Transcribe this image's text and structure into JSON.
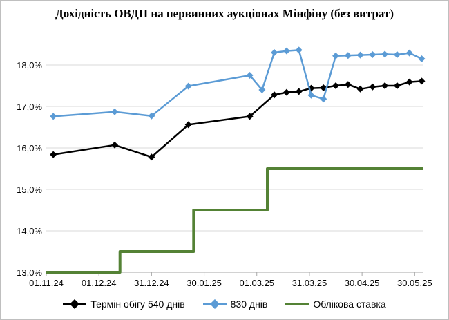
{
  "chart_data": {
    "type": "line",
    "title": "Дохідність ОВДП на первинних аукціонах Мінфіну (без витрат)",
    "xlabel": "",
    "ylabel": "",
    "xlim": [
      "2024-11-01",
      "2025-06-04"
    ],
    "ylim": [
      13.0,
      18.6
    ],
    "y_ticks": [
      13.0,
      14.0,
      15.0,
      16.0,
      17.0,
      18.0
    ],
    "y_tick_labels": [
      "13,0%",
      "14,0%",
      "15,0%",
      "16,0%",
      "17,0%",
      "18,0%"
    ],
    "x_ticks": [
      "2024-11-01",
      "2024-12-01",
      "2024-12-31",
      "2025-01-30",
      "2025-03-01",
      "2025-03-31",
      "2025-04-30",
      "2025-05-30"
    ],
    "x_tick_labels": [
      "01.11.24",
      "01.12.24",
      "31.12.24",
      "30.01.25",
      "01.03.25",
      "31.03.25",
      "30.04.25",
      "30.05.25"
    ],
    "grid": true,
    "legend_position": "bottom",
    "series": [
      {
        "name": "Термін обігу 540 днів",
        "color": "#000000",
        "marker": "diamond",
        "points": [
          [
            "2024-11-05",
            15.84
          ],
          [
            "2024-12-10",
            16.07
          ],
          [
            "2024-12-31",
            15.78
          ],
          [
            "2025-01-21",
            16.56
          ],
          [
            "2025-02-25",
            16.76
          ],
          [
            "2025-03-11",
            17.28
          ],
          [
            "2025-03-18",
            17.34
          ],
          [
            "2025-03-25",
            17.36
          ],
          [
            "2025-04-01",
            17.44
          ],
          [
            "2025-04-08",
            17.45
          ],
          [
            "2025-04-15",
            17.5
          ],
          [
            "2025-04-22",
            17.53
          ],
          [
            "2025-04-29",
            17.42
          ],
          [
            "2025-05-06",
            17.47
          ],
          [
            "2025-05-13",
            17.5
          ],
          [
            "2025-05-20",
            17.5
          ],
          [
            "2025-05-27",
            17.59
          ],
          [
            "2025-06-03",
            17.61
          ]
        ]
      },
      {
        "name": "830 днів",
        "color": "#5b9bd5",
        "marker": "diamond",
        "points": [
          [
            "2024-11-05",
            16.76
          ],
          [
            "2024-12-10",
            16.87
          ],
          [
            "2024-12-31",
            16.77
          ],
          [
            "2025-01-21",
            17.49
          ],
          [
            "2025-02-25",
            17.75
          ],
          [
            "2025-03-04",
            17.4
          ],
          [
            "2025-03-11",
            18.3
          ],
          [
            "2025-03-18",
            18.34
          ],
          [
            "2025-03-25",
            18.36
          ],
          [
            "2025-04-01",
            17.27
          ],
          [
            "2025-04-08",
            17.18
          ],
          [
            "2025-04-15",
            18.22
          ],
          [
            "2025-04-22",
            18.23
          ],
          [
            "2025-04-29",
            18.24
          ],
          [
            "2025-05-06",
            18.25
          ],
          [
            "2025-05-13",
            18.26
          ],
          [
            "2025-05-20",
            18.25
          ],
          [
            "2025-05-27",
            18.29
          ],
          [
            "2025-06-03",
            18.15
          ]
        ]
      },
      {
        "name": "Облікова ставка",
        "color": "#548235",
        "marker": "none",
        "step": true,
        "points": [
          [
            "2024-11-01",
            13.0
          ],
          [
            "2024-12-13",
            13.0
          ],
          [
            "2024-12-13",
            13.5
          ],
          [
            "2025-01-24",
            13.5
          ],
          [
            "2025-01-24",
            14.5
          ],
          [
            "2025-03-07",
            14.5
          ],
          [
            "2025-03-07",
            15.5
          ],
          [
            "2025-06-04",
            15.5
          ]
        ]
      }
    ]
  }
}
